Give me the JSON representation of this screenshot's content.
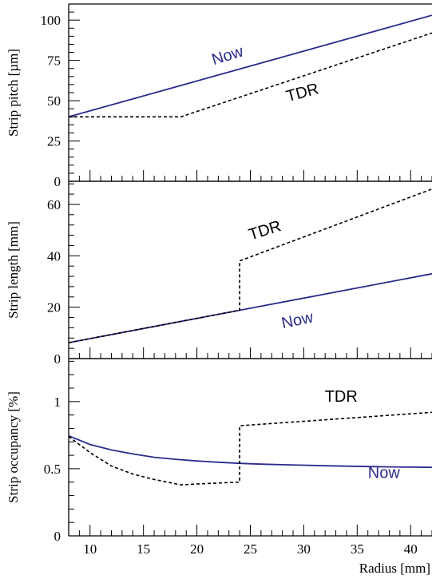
{
  "chart_data": [
    {
      "type": "line",
      "ylabel": "Strip pitch  [µm]",
      "xlim": [
        8,
        42
      ],
      "ylim": [
        0,
        110
      ],
      "xticks": [
        10,
        15,
        20,
        25,
        30,
        35,
        40
      ],
      "yticks": [
        0,
        25,
        50,
        75,
        100
      ],
      "grid": false,
      "series": [
        {
          "name": "Now",
          "color": "#2b2b8c",
          "style": "solid",
          "x": [
            8,
            42
          ],
          "y": [
            40,
            103
          ]
        },
        {
          "name": "TDR",
          "color": "#000000",
          "style": "dashed",
          "x": [
            8,
            18.5,
            42
          ],
          "y": [
            40,
            40,
            92
          ]
        }
      ],
      "annotations": [
        {
          "text": "Now",
          "x": 23,
          "y": 75,
          "rotate": -17,
          "color": "#2b2b8c"
        },
        {
          "text": "TDR",
          "x": 30,
          "y": 52,
          "rotate": -15,
          "color": "#000000"
        }
      ]
    },
    {
      "type": "line",
      "ylabel": "Strip length  [mm]",
      "xlim": [
        8,
        42
      ],
      "ylim": [
        0,
        69
      ],
      "yticks": [
        0,
        20,
        40,
        60
      ],
      "grid": false,
      "series": [
        {
          "name": "Now",
          "color": "#2b2b8c",
          "style": "solid",
          "x": [
            8,
            42
          ],
          "y": [
            6.2,
            33
          ]
        },
        {
          "name": "TDR",
          "color": "#000000",
          "style": "dashed",
          "x": [
            8,
            24,
            24,
            24,
            42
          ],
          "y": [
            6.2,
            18.8,
            19,
            38,
            66
          ]
        }
      ],
      "annotations": [
        {
          "text": "TDR",
          "x": 26.5,
          "y": 48,
          "rotate": -17,
          "color": "#000000"
        },
        {
          "text": "Now",
          "x": 29.5,
          "y": 13,
          "rotate": -12,
          "color": "#2b2b8c"
        }
      ]
    },
    {
      "type": "line",
      "ylabel": "Strip occupancy  [%]",
      "xlabel": "Radius  [mm]",
      "xlim": [
        8,
        42
      ],
      "ylim": [
        0,
        1.32
      ],
      "xticks": [
        10,
        15,
        20,
        25,
        30,
        35,
        40
      ],
      "yticks": [
        0,
        0.5,
        1
      ],
      "grid": false,
      "series": [
        {
          "name": "Now",
          "color": "#2b2b8c",
          "style": "solid",
          "x": [
            8,
            10,
            12,
            14,
            16,
            18,
            20,
            22,
            24,
            26,
            28,
            30,
            32,
            34,
            36,
            38,
            40,
            42
          ],
          "y": [
            0.745,
            0.68,
            0.64,
            0.61,
            0.585,
            0.57,
            0.558,
            0.548,
            0.54,
            0.534,
            0.53,
            0.526,
            0.522,
            0.519,
            0.516,
            0.514,
            0.512,
            0.51
          ]
        },
        {
          "name": "TDR",
          "color": "#000000",
          "style": "dashed",
          "x": [
            8,
            10,
            12,
            14,
            16,
            18.5,
            21,
            24,
            24,
            42
          ],
          "y": [
            0.74,
            0.62,
            0.52,
            0.46,
            0.42,
            0.38,
            0.39,
            0.4,
            0.82,
            0.92
          ]
        }
      ],
      "annotations": [
        {
          "text": "TDR",
          "x": 33.5,
          "y": 1.0,
          "rotate": 0,
          "color": "#000000"
        },
        {
          "text": "Now",
          "x": 37.5,
          "y": 0.43,
          "rotate": 0,
          "color": "#2b2b8c"
        }
      ]
    }
  ]
}
